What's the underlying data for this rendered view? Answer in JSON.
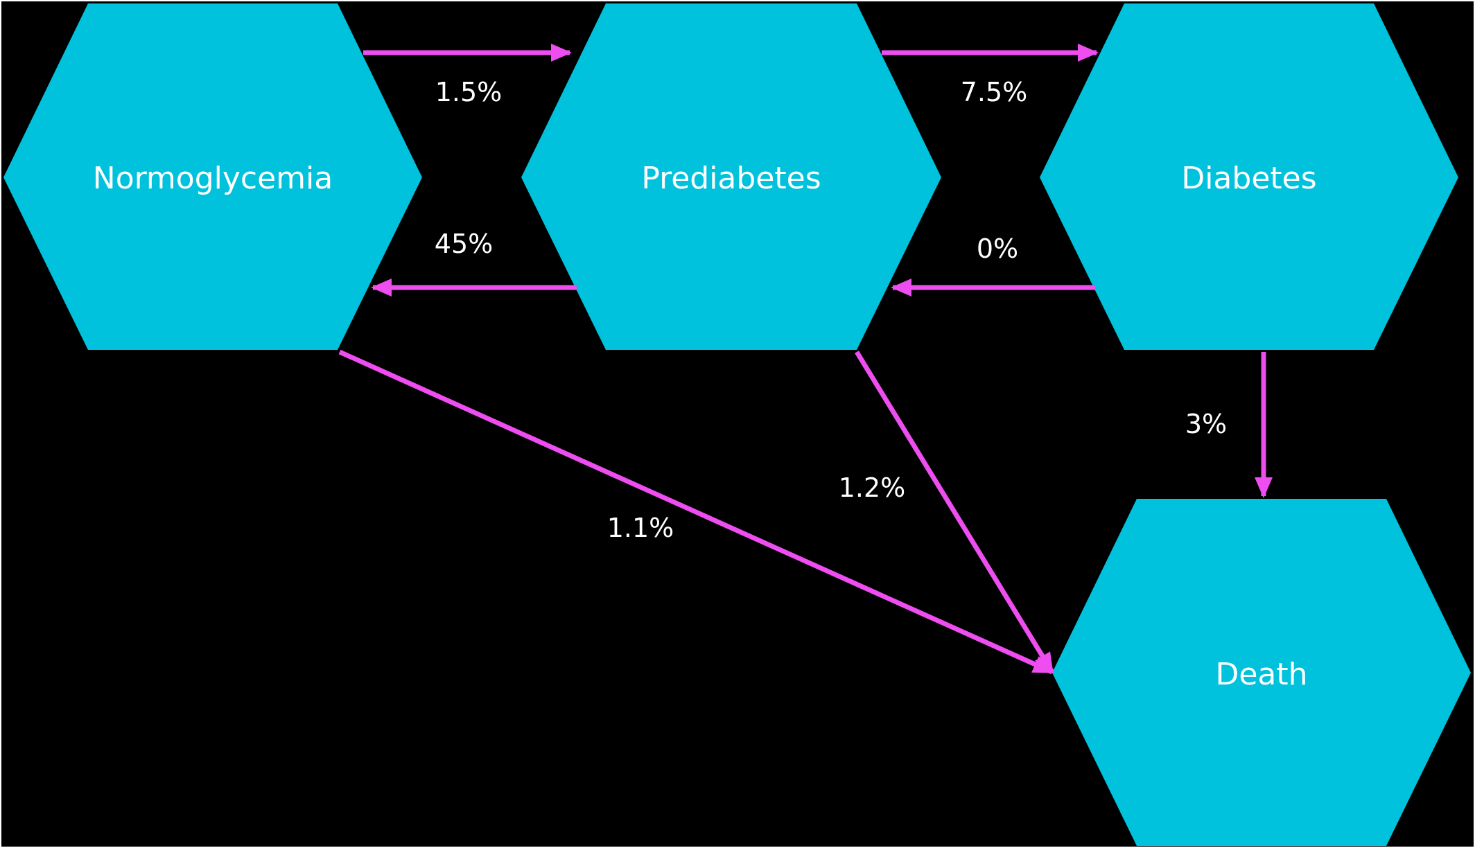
{
  "colors": {
    "background": "#000000",
    "node_fill": "#00c2dc",
    "arrow": "#ee4df0",
    "text": "#ffffff"
  },
  "nodes": {
    "normoglycemia": "Normoglycemia",
    "prediabetes": "Prediabetes",
    "diabetes": "Diabetes",
    "death": "Death"
  },
  "transitions": {
    "normo_to_pre": "1.5%",
    "pre_to_normo": "45%",
    "pre_to_diabetes": "7.5%",
    "diabetes_to_pre": "0%",
    "diabetes_to_death": "3%",
    "pre_to_death": "1.2%",
    "normo_to_death": "1.1%"
  }
}
